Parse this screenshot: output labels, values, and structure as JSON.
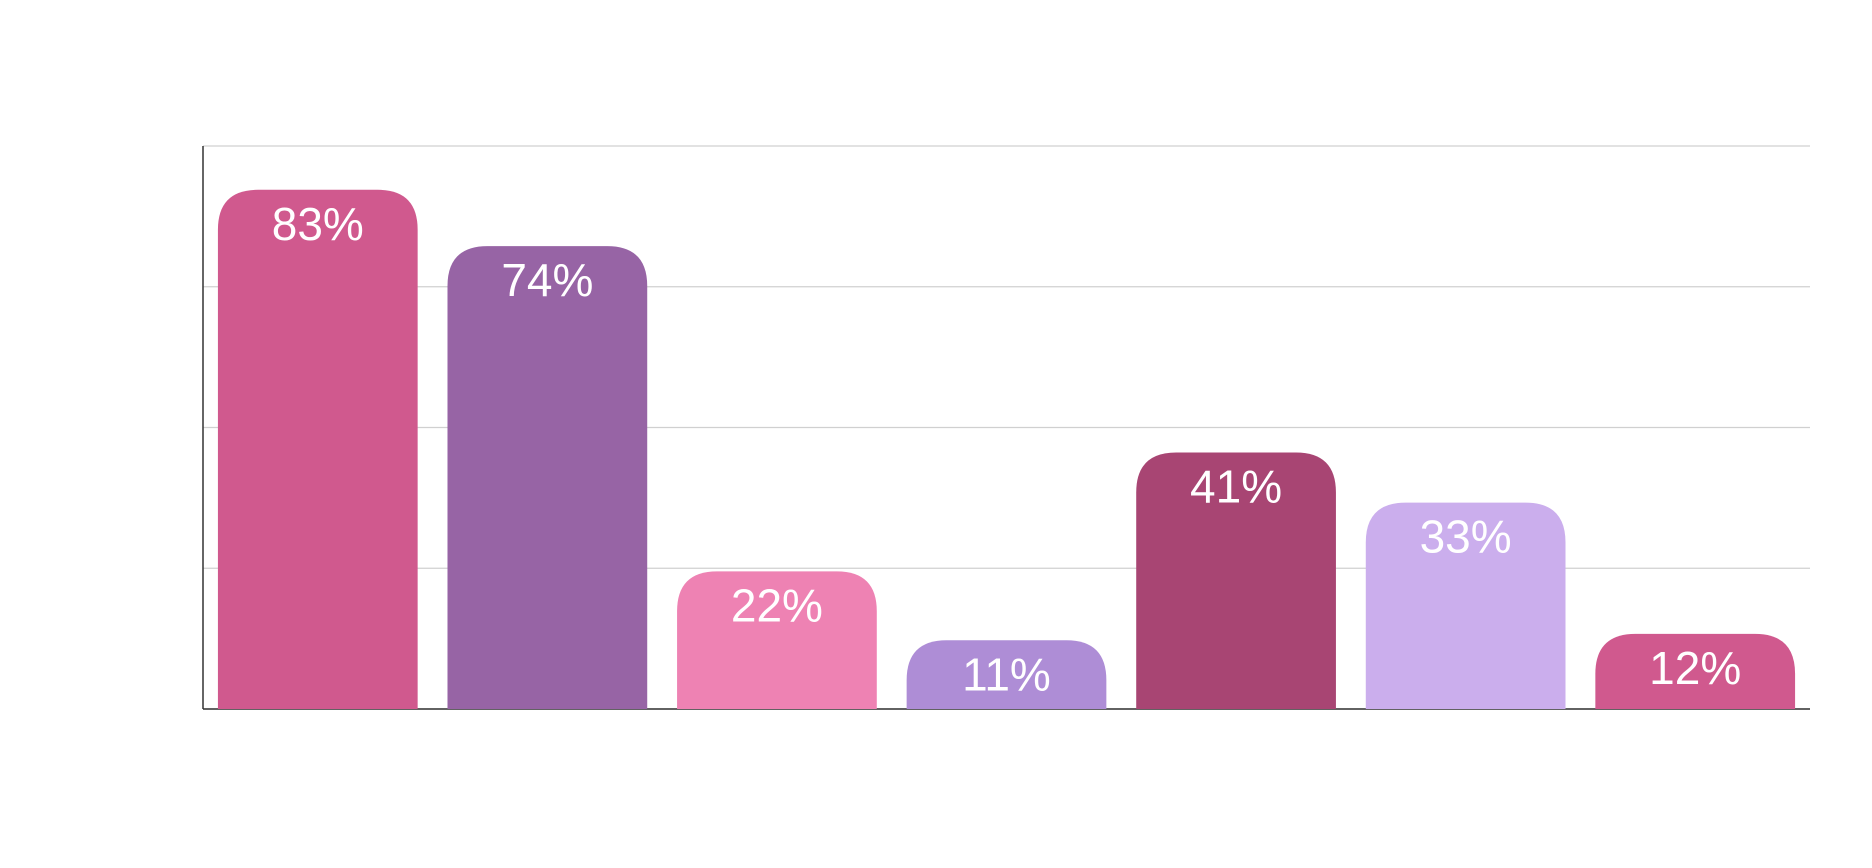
{
  "chart_data": {
    "type": "bar",
    "categories": [
      null,
      null,
      null,
      null,
      null,
      null,
      null
    ],
    "values": [
      83,
      74,
      22,
      11,
      41,
      33,
      12
    ],
    "value_labels": [
      "83%",
      "74%",
      "22%",
      "11%",
      "41%",
      "33%",
      "12%"
    ],
    "colors": [
      "#d0598e",
      "#9764a5",
      "#ee82b3",
      "#ae8dd6",
      "#a84573",
      "#cbaeed",
      "#d0598e"
    ],
    "ylim": [
      0,
      90
    ],
    "yticks": [
      0,
      22.5,
      45,
      67.5,
      90
    ],
    "grid": true
  }
}
